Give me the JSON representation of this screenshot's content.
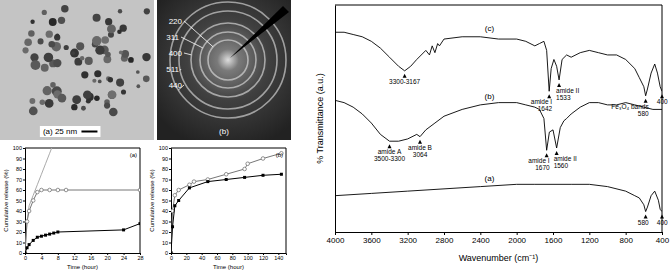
{
  "images": [
    {
      "type": "tem",
      "label": "(a) 25 nm"
    },
    {
      "type": "saed",
      "label": "(b)",
      "rings": [
        "220",
        "311",
        "400",
        "511",
        "440"
      ]
    }
  ],
  "chart_data": [
    {
      "type": "line",
      "title": "(a)",
      "x_label": "Time (hour)",
      "y_label": "Cumulative release (%)",
      "xlim": [
        0,
        28
      ],
      "xticks": [
        0,
        4,
        8,
        12,
        16,
        20,
        24,
        28
      ],
      "ylim": [
        0,
        100
      ],
      "yticks": [
        0,
        10,
        20,
        30,
        40,
        50,
        60,
        70,
        80,
        90,
        100
      ],
      "series": [
        {
          "color": "#aaaaaa",
          "marker": "none",
          "x": [
            0,
            0.5,
            1,
            2,
            3,
            4,
            5,
            6,
            6.5
          ],
          "values": [
            0,
            30,
            45,
            55,
            65,
            75,
            85,
            95,
            100
          ]
        },
        {
          "color": "#777777",
          "marker": "circle-open",
          "x": [
            0,
            0.5,
            1,
            2,
            3,
            4,
            6,
            8,
            10,
            28
          ],
          "values": [
            0,
            30,
            40,
            50,
            58,
            60,
            60,
            60,
            60,
            60
          ]
        },
        {
          "color": "#000000",
          "marker": "square",
          "x": [
            0,
            0.5,
            1,
            2,
            3,
            4,
            5,
            6,
            7,
            8,
            24,
            28
          ],
          "values": [
            0,
            5,
            8,
            12,
            15,
            16,
            17,
            18,
            19,
            20,
            22,
            28
          ]
        }
      ]
    },
    {
      "type": "line",
      "title": "(b)",
      "x_label": "Time (hour)",
      "y_label": "Cumulative release (%)",
      "xlim": [
        0,
        150
      ],
      "xticks": [
        0,
        20,
        40,
        60,
        80,
        100,
        120,
        140
      ],
      "ylim": [
        0,
        100
      ],
      "yticks": [
        0,
        10,
        20,
        30,
        40,
        50,
        60,
        70,
        80,
        90,
        100
      ],
      "series": [
        {
          "color": "#777777",
          "marker": "circle-open",
          "x": [
            0,
            2,
            5,
            10,
            24,
            30,
            48,
            72,
            96,
            100,
            120,
            144
          ],
          "values": [
            0,
            40,
            55,
            60,
            65,
            68,
            70,
            75,
            80,
            85,
            90,
            95
          ]
        },
        {
          "color": "#000000",
          "marker": "square",
          "x": [
            0,
            2,
            5,
            10,
            24,
            48,
            72,
            96,
            120,
            144
          ],
          "values": [
            0,
            25,
            45,
            50,
            62,
            68,
            70,
            72,
            74,
            75
          ]
        }
      ]
    },
    {
      "type": "line",
      "x_label": "Wavenumber (cm⁻¹)",
      "y_label": "% Transmittance (a.u.)",
      "xlim": [
        4000,
        400
      ],
      "xticks": [
        4000,
        3600,
        3200,
        2800,
        2400,
        2000,
        1600,
        1200,
        800,
        400
      ],
      "ylim": [
        0,
        100
      ],
      "tick_labels": "x",
      "series": [
        {
          "name": "(a)",
          "color": "#000000",
          "marker": "none",
          "x": [
            4000,
            3600,
            3200,
            2800,
            2400,
            2000,
            1800,
            1600,
            1400,
            1200,
            1000,
            800,
            700,
            650,
            600,
            580,
            560,
            520,
            480,
            440,
            420,
            400
          ],
          "values": [
            16,
            17,
            18,
            19,
            20,
            21,
            21,
            21,
            21,
            21,
            20,
            18,
            16,
            15,
            12,
            9,
            11,
            16,
            18,
            14,
            10,
            9
          ]
        },
        {
          "name": "(b)",
          "color": "#000000",
          "marker": "none",
          "x": [
            4000,
            3900,
            3800,
            3700,
            3600,
            3500,
            3400,
            3300,
            3200,
            3100,
            3064,
            3000,
            2900,
            2800,
            2600,
            2400,
            2200,
            2000,
            1900,
            1800,
            1750,
            1700,
            1670,
            1640,
            1600,
            1560,
            1520,
            1480,
            1450,
            1400,
            1300,
            1200,
            1100,
            1000,
            900,
            800,
            700,
            600,
            500,
            400
          ],
          "values": [
            58,
            57,
            55,
            52,
            48,
            43,
            40,
            40,
            41,
            43,
            42,
            45,
            48,
            51,
            54,
            56,
            57,
            57,
            56,
            55,
            54,
            50,
            36,
            44,
            45,
            37,
            46,
            49,
            50,
            52,
            55,
            57,
            57,
            56,
            56,
            57,
            56,
            55,
            54,
            54
          ]
        },
        {
          "name": "(c)",
          "color": "#000000",
          "marker": "none",
          "x": [
            4000,
            3900,
            3800,
            3700,
            3600,
            3500,
            3400,
            3300,
            3233,
            3167,
            3100,
            3000,
            2960,
            2930,
            2900,
            2870,
            2850,
            2800,
            2600,
            2400,
            2200,
            2000,
            1900,
            1800,
            1750,
            1700,
            1670,
            1642,
            1620,
            1590,
            1560,
            1533,
            1500,
            1450,
            1400,
            1300,
            1200,
            1100,
            1000,
            900,
            800,
            700,
            650,
            600,
            580,
            560,
            520,
            480,
            450,
            420,
            400
          ],
          "values": [
            88,
            88,
            87,
            86,
            84,
            81,
            77,
            73,
            71,
            73,
            76,
            80,
            78,
            82,
            79,
            83,
            82,
            85,
            86,
            86,
            85,
            85,
            84,
            82,
            83,
            84,
            80,
            62,
            72,
            76,
            73,
            67,
            76,
            78,
            77,
            79,
            80,
            79,
            78,
            78,
            76,
            72,
            68,
            64,
            60,
            63,
            70,
            74,
            70,
            64,
            62
          ]
        }
      ],
      "annotations": [
        {
          "text": [
            "3300-3167"
          ],
          "x": [
            3300,
            3167
          ],
          "series": 2
        },
        {
          "text": [
            "amide I",
            "1642"
          ],
          "x": 1642,
          "series": 2
        },
        {
          "text": [
            "amide II",
            "1533"
          ],
          "x": 1533,
          "series": 2
        },
        {
          "text": [
            "Fe₃O₄ bands",
            "580"
          ],
          "x": 580,
          "series": 2
        },
        {
          "text": [
            "400"
          ],
          "x": 400,
          "series": 2
        },
        {
          "text": [
            "amide A",
            "3500-3300"
          ],
          "x": [
            3500,
            3300
          ],
          "series": 1
        },
        {
          "text": [
            "amide B",
            "3064"
          ],
          "x": 3064,
          "series": 1
        },
        {
          "text": [
            "amide I",
            "1670"
          ],
          "x": 1670,
          "series": 1
        },
        {
          "text": [
            "amide II",
            "1560"
          ],
          "x": 1560,
          "series": 1
        },
        {
          "text": [
            "580"
          ],
          "x": 580,
          "series": 0
        },
        {
          "text": [
            "400"
          ],
          "x": 400,
          "series": 0
        }
      ]
    }
  ]
}
